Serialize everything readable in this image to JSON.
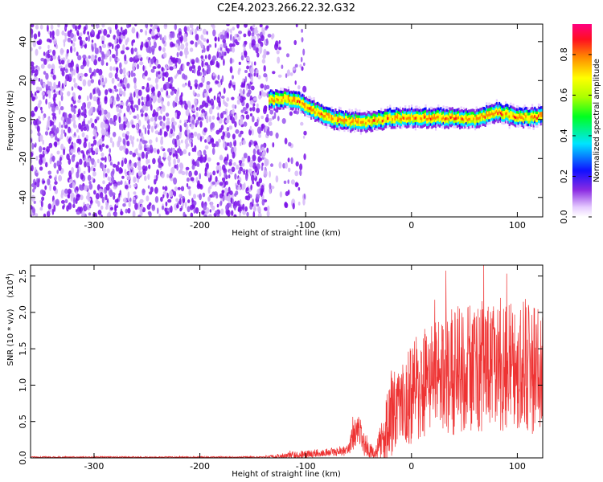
{
  "title": "C2E4.2023.266.22.32.G32",
  "spectrogram": {
    "type": "heatmap",
    "xlabel": "Height of straight line (km)",
    "ylabel": "Frequency (Hz)",
    "xlim": [
      -360,
      124
    ],
    "ylim": [
      -50,
      49
    ],
    "xticks": [
      -300,
      -200,
      -100,
      0,
      100
    ],
    "yticks": [
      -40,
      -20,
      0,
      20,
      40
    ],
    "noise_region_km": [
      -360,
      -100
    ],
    "signal_start_km": -135,
    "signal_center_hz": [
      {
        "x": -135,
        "y": 10
      },
      {
        "x": -120,
        "y": 11
      },
      {
        "x": -110,
        "y": 10
      },
      {
        "x": -100,
        "y": 7
      },
      {
        "x": -90,
        "y": 4
      },
      {
        "x": -80,
        "y": 1
      },
      {
        "x": -70,
        "y": 0
      },
      {
        "x": -60,
        "y": -1
      },
      {
        "x": -40,
        "y": -1
      },
      {
        "x": -20,
        "y": 1
      },
      {
        "x": 0,
        "y": 1
      },
      {
        "x": 20,
        "y": 1
      },
      {
        "x": 40,
        "y": 1
      },
      {
        "x": 60,
        "y": 0
      },
      {
        "x": 80,
        "y": 4
      },
      {
        "x": 95,
        "y": 2
      },
      {
        "x": 110,
        "y": 1
      },
      {
        "x": 124,
        "y": 2
      }
    ]
  },
  "colorbar": {
    "label": "Normalized spectral amplitude",
    "range": [
      0,
      0.95
    ],
    "ticks": [
      "0.0",
      "0.2",
      "0.4",
      "0.6",
      "0.8"
    ],
    "tick_values": [
      0,
      0.2,
      0.4,
      0.6,
      0.8
    ]
  },
  "chart_data": {
    "type": "line",
    "title": "C2E4.2023.266.22.32.G32",
    "xlabel": "Height of straight line (km)",
    "ylabel": "SNR (10 * v/v)",
    "y_scale_note": "(x10",
    "y_scale_exp": "4",
    "y_scale_close": ")",
    "xlim": [
      -360,
      124
    ],
    "ylim": [
      0,
      2.65
    ],
    "xticks": [
      -300,
      -200,
      -100,
      0,
      100
    ],
    "yticks": [
      "0.0",
      "0.5",
      "1.0",
      "1.5",
      "2.0",
      "2.5"
    ],
    "ytick_values": [
      0,
      0.5,
      1.0,
      1.5,
      2.0,
      2.5
    ],
    "series": [
      {
        "color": "#ee3333",
        "envelope": [
          {
            "x": -360,
            "base": 0.01,
            "amp": 0.01
          },
          {
            "x": -140,
            "base": 0.01,
            "amp": 0.01
          },
          {
            "x": -120,
            "base": 0.03,
            "amp": 0.04
          },
          {
            "x": -100,
            "base": 0.05,
            "amp": 0.06
          },
          {
            "x": -80,
            "base": 0.08,
            "amp": 0.05
          },
          {
            "x": -60,
            "base": 0.1,
            "amp": 0.08
          },
          {
            "x": -55,
            "base": 0.3,
            "amp": 0.2
          },
          {
            "x": -50,
            "base": 0.4,
            "amp": 0.2
          },
          {
            "x": -45,
            "base": 0.2,
            "amp": 0.2
          },
          {
            "x": -35,
            "base": 0.05,
            "amp": 0.05
          },
          {
            "x": -25,
            "base": 0.3,
            "amp": 0.4
          },
          {
            "x": -20,
            "base": 0.6,
            "amp": 0.6
          },
          {
            "x": -10,
            "base": 0.7,
            "amp": 0.5
          },
          {
            "x": 0,
            "base": 0.9,
            "amp": 0.8
          },
          {
            "x": 20,
            "base": 1.1,
            "amp": 0.8
          },
          {
            "x": 40,
            "base": 1.2,
            "amp": 0.9
          },
          {
            "x": 60,
            "base": 1.25,
            "amp": 0.9
          },
          {
            "x": 80,
            "base": 1.3,
            "amp": 0.9
          },
          {
            "x": 100,
            "base": 1.25,
            "amp": 1.0
          },
          {
            "x": 124,
            "base": 1.2,
            "amp": 0.9
          }
        ]
      }
    ]
  }
}
